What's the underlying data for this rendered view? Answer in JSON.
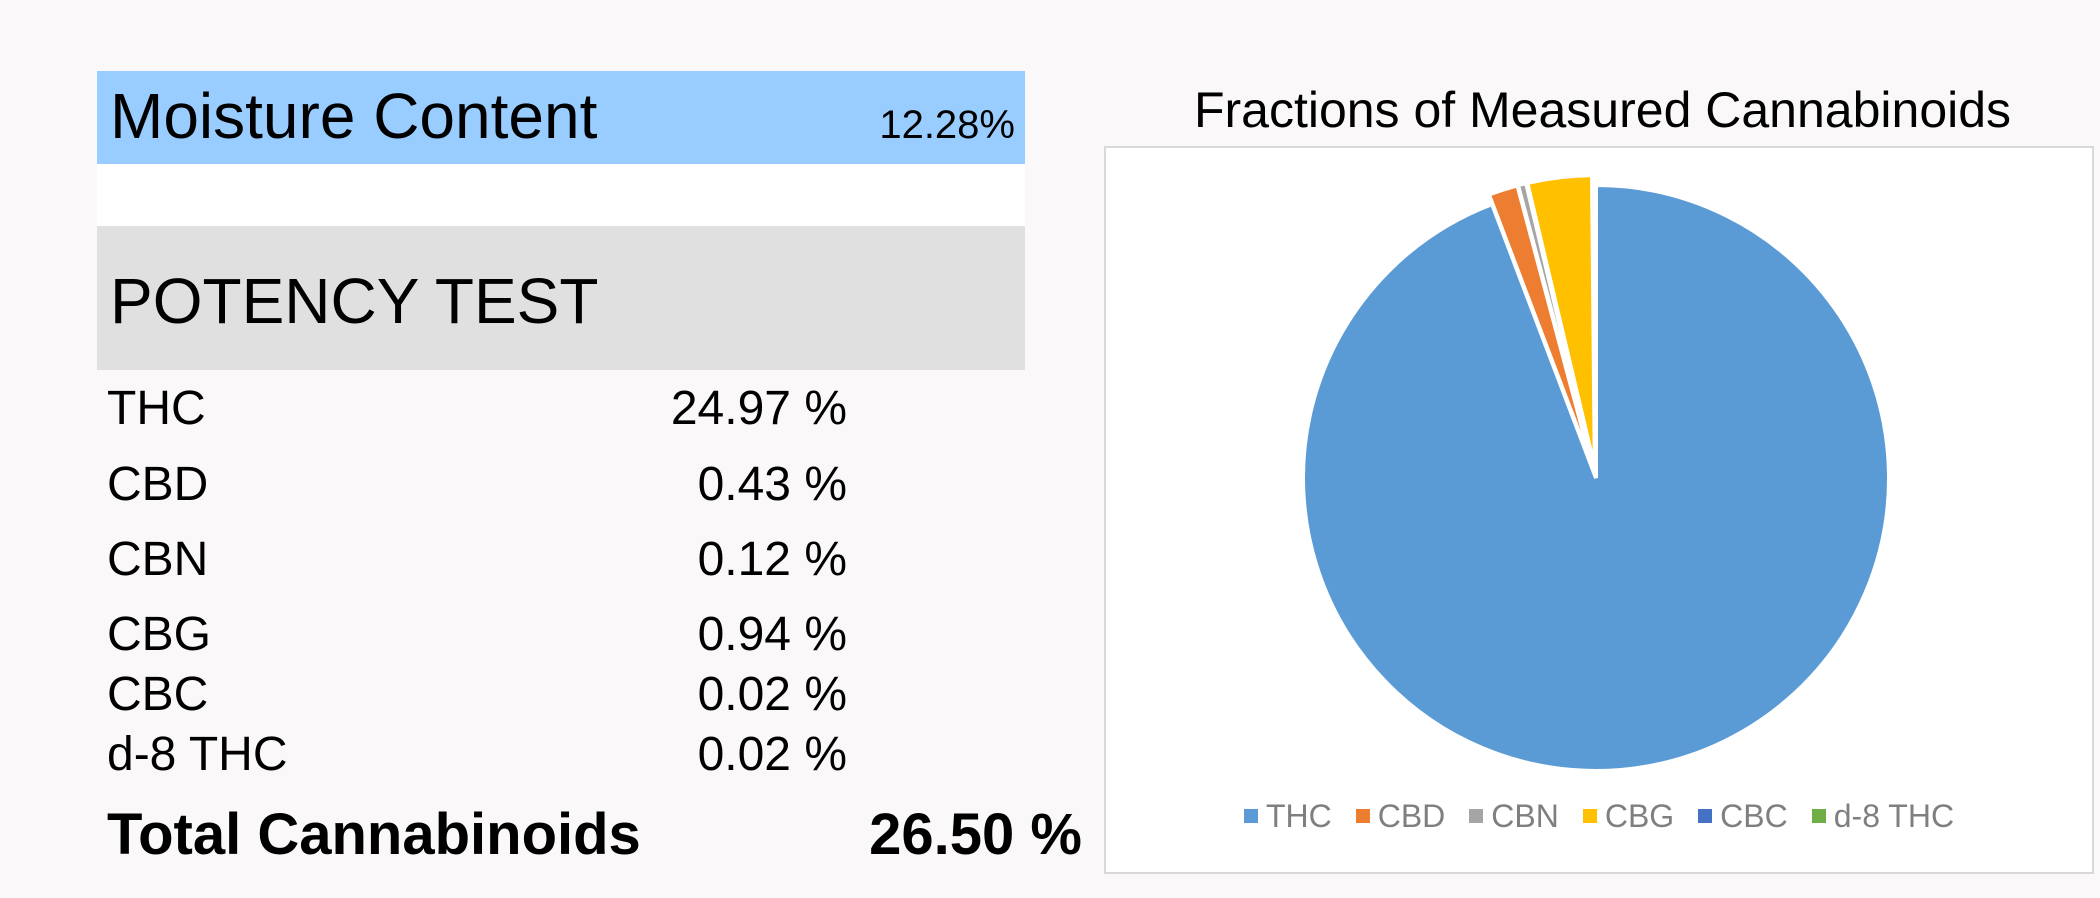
{
  "moisture": {
    "label": "Moisture Content",
    "value": "12.28%"
  },
  "potency": {
    "title": "POTENCY TEST",
    "rows": [
      {
        "name": "THC",
        "value": "24.97 %"
      },
      {
        "name": "CBD",
        "value": "0.43 %"
      },
      {
        "name": "CBN",
        "value": "0.12 %"
      },
      {
        "name": "CBG",
        "value": "0.94 %"
      },
      {
        "name": "CBC",
        "value": "0.02 %"
      },
      {
        "name": "d-8 THC",
        "value": "0.02 %"
      }
    ],
    "total": {
      "name": "Total Cannabinoids",
      "value": "26.50 %"
    }
  },
  "chart_data": {
    "type": "pie",
    "title": "Fractions of Measured Cannabinoids",
    "categories": [
      "THC",
      "CBD",
      "CBN",
      "CBG",
      "CBC",
      "d-8 THC"
    ],
    "values": [
      24.97,
      0.43,
      0.12,
      0.94,
      0.02,
      0.02
    ],
    "colors": [
      "#5b9bd5",
      "#ed7d31",
      "#a5a5a5",
      "#ffc000",
      "#4472c4",
      "#70ad47"
    ],
    "legend_position": "bottom",
    "exploded": true
  }
}
